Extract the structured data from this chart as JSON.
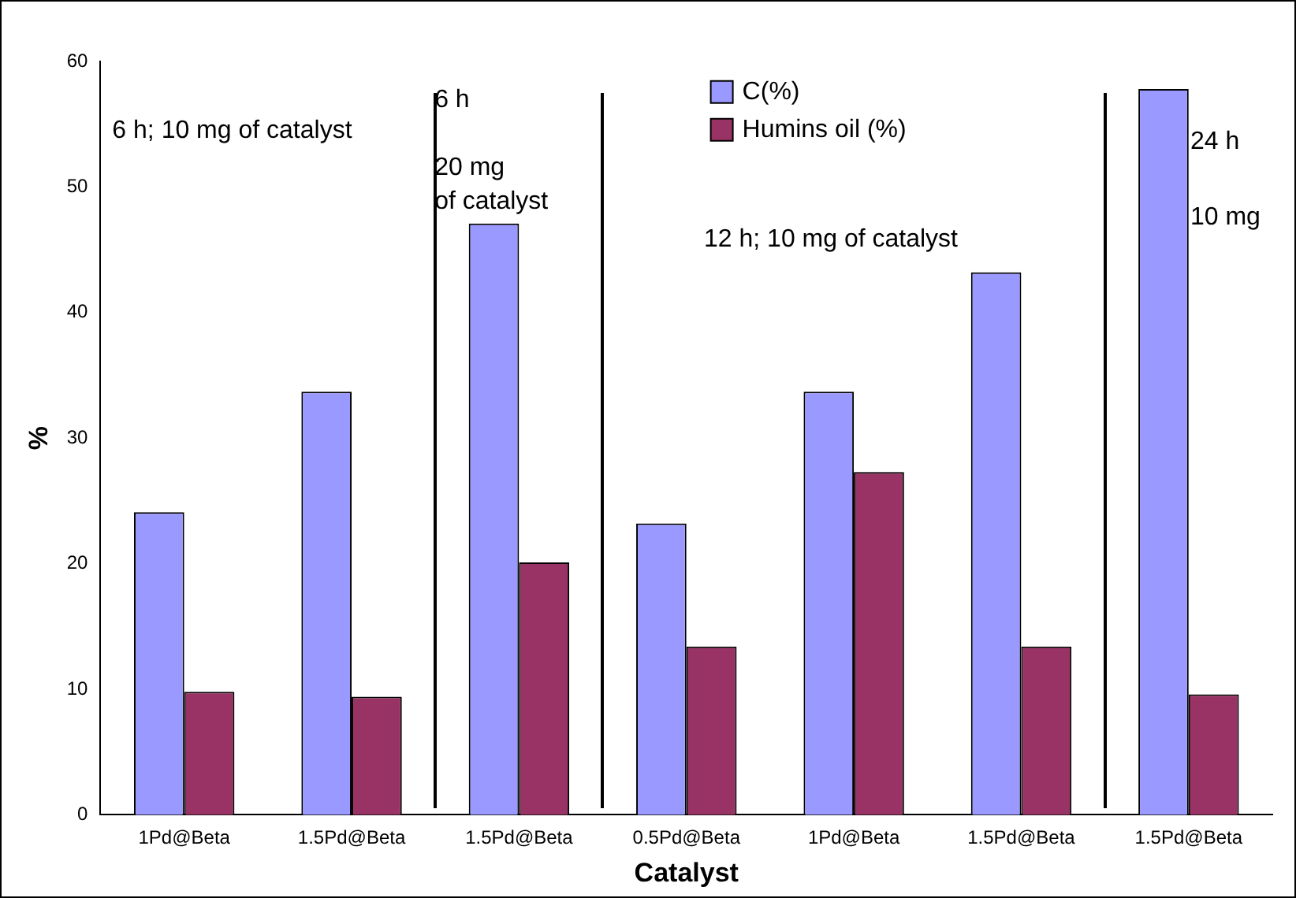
{
  "chart_data": {
    "type": "bar",
    "xlabel": "Catalyst",
    "ylabel": "%",
    "categories": [
      "1Pd@Beta",
      "1.5Pd@Beta",
      "1.5Pd@Beta",
      "0.5Pd@Beta",
      "1Pd@Beta",
      "1.5Pd@Beta",
      "1.5Pd@Beta"
    ],
    "series": [
      {
        "name": "C(%)",
        "color": "#9999ff",
        "values": [
          24.1,
          33.7,
          47.1,
          23.2,
          33.7,
          43.2,
          57.8
        ]
      },
      {
        "name": "Humins oil (%)",
        "color": "#993366",
        "values": [
          9.8,
          9.4,
          20.1,
          13.4,
          27.3,
          13.4,
          9.6
        ]
      }
    ],
    "ylim": [
      0,
      60
    ],
    "yticks": [
      0,
      10,
      20,
      30,
      40,
      50,
      60
    ],
    "grid": false,
    "legend": "top",
    "annotations": [
      "6 h; 10 mg of catalyst",
      "6 h",
      "20 mg",
      "of catalyst",
      "12 h; 10 mg of catalyst",
      "24 h",
      "10 mg"
    ]
  }
}
